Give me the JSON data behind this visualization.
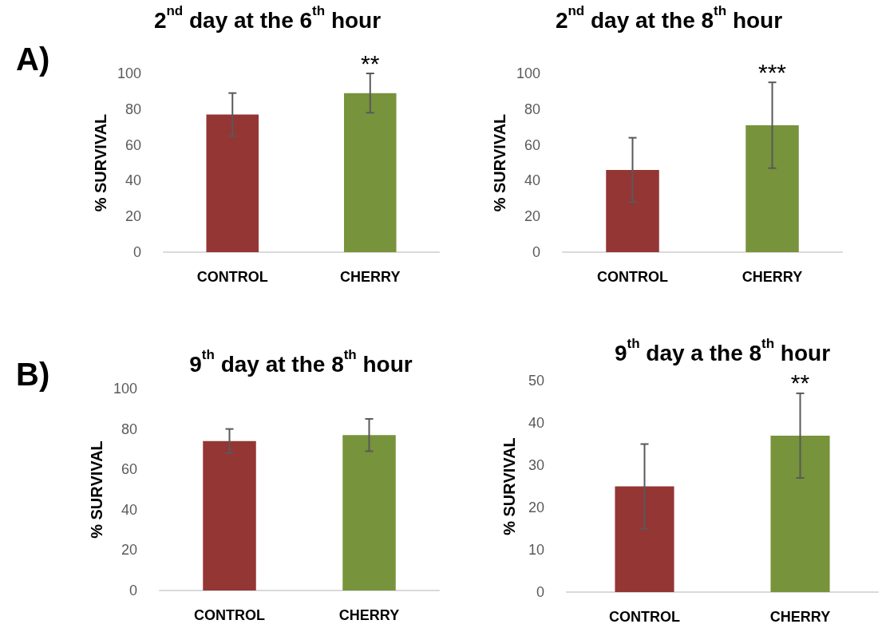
{
  "chart_data": [
    {
      "type": "bar",
      "title": "2$^{nd}$ day at the 6$^{th}$ hour",
      "ylabel": "% SURVIVAL",
      "categories": [
        "CONTROL",
        "CHERRY"
      ],
      "values": [
        77,
        89
      ],
      "errors": [
        12,
        11
      ],
      "colors": [
        "#943634",
        "#77933c"
      ],
      "ylim": [
        0,
        100
      ],
      "yticks": [
        0,
        20,
        40,
        60,
        80,
        100
      ],
      "grid": false,
      "annotations": [
        "A)",
        {
          "text": "**",
          "x": "CHERRY",
          "y": 100
        }
      ]
    },
    {
      "type": "bar",
      "title": "2$^{nd}$ day at the 8$^{th}$ hour",
      "ylabel": "% SURVIVAL",
      "categories": [
        "CONTROL",
        "CHERRY"
      ],
      "values": [
        46,
        71
      ],
      "errors": [
        18,
        24
      ],
      "colors": [
        "#943634",
        "#77933c"
      ],
      "ylim": [
        0,
        100
      ],
      "yticks": [
        0,
        20,
        40,
        60,
        80,
        100
      ],
      "grid": false,
      "annotations": [
        {
          "text": "***",
          "x": "CHERRY",
          "y": 95
        }
      ]
    },
    {
      "type": "bar",
      "title": "9$^{th}$ day at the 8$^{th}$ hour",
      "ylabel": "% SURVIVAL",
      "categories": [
        "CONTROL",
        "CHERRY"
      ],
      "values": [
        74,
        77
      ],
      "errors": [
        6,
        8
      ],
      "colors": [
        "#943634",
        "#77933c"
      ],
      "ylim": [
        0,
        100
      ],
      "yticks": [
        0,
        20,
        40,
        60,
        80,
        100
      ],
      "grid": false,
      "annotations": [
        "B)"
      ]
    },
    {
      "type": "bar",
      "title": "9$^{th}$ day a the 8$^{th}$ hour",
      "ylabel": "% SURVIVAL",
      "categories": [
        "CONTROL",
        "CHERRY"
      ],
      "values": [
        25,
        37
      ],
      "errors": [
        10,
        10
      ],
      "colors": [
        "#943634",
        "#77933c"
      ],
      "ylim": [
        0,
        50
      ],
      "yticks": [
        0,
        10,
        20,
        30,
        40,
        50
      ],
      "grid": false,
      "annotations": [
        {
          "text": "**",
          "x": "CHERRY",
          "y": 47
        }
      ]
    }
  ]
}
